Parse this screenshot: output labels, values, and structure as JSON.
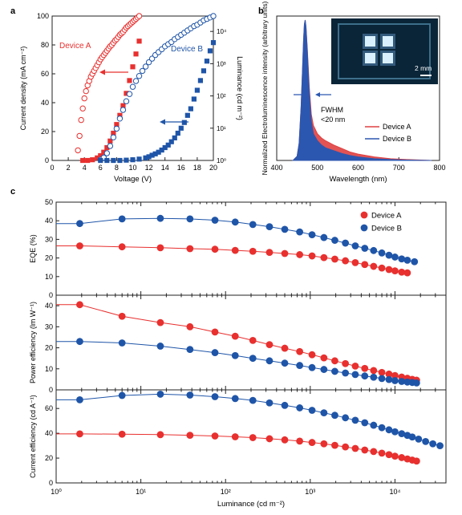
{
  "colors": {
    "device_a": "#e8302f",
    "device_b": "#1f55a8",
    "axis": "#222222",
    "spectrum_a": "#e04040",
    "spectrum_b": "#2c57b0",
    "inset_bg": "#0a2538"
  },
  "chart_data": [
    {
      "panel": "a",
      "type": "line",
      "xlabel": "Voltage (V)",
      "ylabel": "Current density (mA cm⁻²)",
      "y2label": "Luminance (cd m⁻²)",
      "xlim": [
        0,
        20
      ],
      "ylim": [
        0,
        100
      ],
      "y2lim": [
        1,
        30000
      ],
      "y2scale": "log",
      "x_ticks": [
        "0",
        "2",
        "4",
        "6",
        "8",
        "10",
        "12",
        "14",
        "16",
        "18",
        "20"
      ],
      "y_ticks": [
        "0",
        "20",
        "40",
        "60",
        "80",
        "100"
      ],
      "y2_ticks": [
        "10⁰",
        "10¹",
        "10²",
        "10³",
        "10⁴"
      ],
      "legend": [
        {
          "name": "Device A",
          "color": "device_a"
        },
        {
          "name": "Device B",
          "color": "device_b"
        }
      ],
      "series": [
        {
          "name": "Device A",
          "kind": "current",
          "axis": "left",
          "marker": "open-circle",
          "color": "device_a",
          "x": [
            3.2,
            3.4,
            3.6,
            3.8,
            4.0,
            4.2,
            4.4,
            4.6,
            4.8,
            5.0,
            5.2,
            5.4,
            5.6,
            5.8,
            6.0,
            6.2,
            6.4,
            6.6,
            6.8,
            7.0,
            7.2,
            7.4,
            7.6,
            7.8,
            8.0,
            8.2,
            8.4,
            8.6,
            8.8,
            9.0,
            9.2,
            9.4,
            9.6,
            9.8,
            10.0,
            10.2,
            10.4,
            10.6,
            10.8
          ],
          "y": [
            7,
            17,
            28,
            36,
            43,
            48,
            52,
            55,
            58,
            60,
            62,
            64,
            66,
            68,
            70,
            71.5,
            73,
            74.5,
            76,
            77.5,
            79,
            80,
            81.5,
            83,
            84,
            85.5,
            87,
            88,
            89,
            90.5,
            92,
            93,
            94,
            95,
            96,
            97,
            98,
            99,
            100
          ]
        },
        {
          "name": "Device A",
          "kind": "luminance",
          "axis": "right",
          "marker": "filled-square",
          "color": "device_a",
          "x": [
            3.8,
            4.4,
            5.0,
            5.6,
            6.0,
            6.4,
            6.8,
            7.2,
            7.6,
            8.0,
            8.4,
            8.8,
            9.2,
            9.6,
            10.0,
            10.4,
            10.8
          ],
          "y": [
            1,
            1,
            1.05,
            1.2,
            1.4,
            1.8,
            2.5,
            4,
            7,
            13,
            25,
            50,
            120,
            300,
            800,
            2000,
            5000
          ]
        },
        {
          "name": "Device B",
          "kind": "current",
          "axis": "left",
          "marker": "open-circle",
          "color": "device_b",
          "x": [
            6.0,
            6.4,
            6.8,
            7.2,
            7.6,
            8.0,
            8.4,
            8.8,
            9.2,
            9.6,
            10.0,
            10.4,
            10.8,
            11.2,
            11.6,
            12.0,
            12.4,
            12.8,
            13.2,
            13.6,
            14.0,
            14.4,
            14.8,
            15.2,
            15.6,
            16.0,
            16.4,
            16.8,
            17.2,
            17.6,
            18.0,
            18.4,
            18.8,
            19.2,
            19.6,
            20.0
          ],
          "y": [
            0.5,
            2,
            5,
            10,
            16,
            22,
            29,
            35,
            41,
            46,
            51,
            55,
            58.5,
            62,
            65,
            68,
            70.5,
            73,
            75,
            77,
            79,
            80.5,
            82,
            84,
            85.5,
            87,
            88.5,
            90,
            91.5,
            93,
            94,
            95.5,
            97,
            98,
            99,
            100
          ]
        },
        {
          "name": "Device B",
          "kind": "luminance",
          "axis": "right",
          "marker": "filled-square",
          "color": "device_b",
          "x": [
            6.0,
            6.8,
            7.6,
            8.4,
            9.2,
            10.0,
            10.8,
            11.6,
            12.0,
            12.4,
            12.8,
            13.2,
            13.6,
            14.0,
            14.4,
            14.8,
            15.2,
            15.6,
            16.0,
            16.4,
            16.8,
            17.2,
            17.6,
            18.0,
            18.4,
            18.8,
            19.2,
            19.6,
            20.0
          ],
          "y": [
            1,
            1,
            1,
            1,
            1.02,
            1.05,
            1.1,
            1.2,
            1.3,
            1.45,
            1.6,
            1.8,
            2.1,
            2.5,
            3,
            3.8,
            5,
            7,
            10,
            15,
            25,
            40,
            80,
            150,
            300,
            600,
            1200,
            2500,
            4500
          ]
        }
      ]
    },
    {
      "panel": "b",
      "type": "area",
      "xlabel": "Wavelength (nm)",
      "ylabel": "Normalized Electroluminescence intensity (arbitrary units)",
      "xlim": [
        400,
        800
      ],
      "ylim": [
        0,
        1
      ],
      "x_ticks": [
        "400",
        "500",
        "600",
        "700",
        "800"
      ],
      "annotation": "FWHM <20 nm",
      "inset_scale_label": "2 mm",
      "legend": [
        {
          "name": "Device A",
          "color": "spectrum_a"
        },
        {
          "name": "Device B",
          "color": "spectrum_b"
        }
      ],
      "series": [
        {
          "name": "Device A",
          "color": "spectrum_a",
          "x": [
            440,
            450,
            455,
            460,
            463,
            466,
            468,
            470,
            472,
            475,
            480,
            485,
            490,
            500,
            510,
            520,
            540,
            560,
            580,
            600,
            640,
            680,
            720,
            780
          ],
          "y": [
            0,
            0.03,
            0.12,
            0.38,
            0.62,
            0.86,
            0.97,
            1.0,
            0.95,
            0.8,
            0.52,
            0.33,
            0.25,
            0.19,
            0.16,
            0.14,
            0.11,
            0.085,
            0.06,
            0.045,
            0.025,
            0.012,
            0.006,
            0
          ]
        },
        {
          "name": "Device B",
          "color": "spectrum_b",
          "x": [
            440,
            450,
            455,
            460,
            463,
            466,
            468,
            470,
            472,
            475,
            480,
            485,
            490,
            500,
            510,
            520,
            540,
            560,
            580,
            600,
            640,
            680,
            720,
            780
          ],
          "y": [
            0,
            0.03,
            0.12,
            0.38,
            0.62,
            0.86,
            0.97,
            1.0,
            0.95,
            0.78,
            0.48,
            0.28,
            0.19,
            0.14,
            0.11,
            0.09,
            0.07,
            0.05,
            0.035,
            0.025,
            0.012,
            0.006,
            0.003,
            0
          ]
        }
      ]
    },
    {
      "panel": "c",
      "type": "line",
      "xlabel": "Luminance (cd m⁻²)",
      "xscale": "log",
      "xlim": [
        1,
        40000
      ],
      "x_ticks": [
        "10⁰",
        "10¹",
        "10²",
        "10³",
        "10⁴"
      ],
      "legend": [
        {
          "name": "Device A",
          "color": "device_a"
        },
        {
          "name": "Device B",
          "color": "device_b"
        }
      ],
      "subplots": [
        {
          "ylabel": "EQE (%)",
          "ylim": [
            0,
            50
          ],
          "y_ticks": [
            "0",
            "10",
            "20",
            "30",
            "40",
            "50"
          ],
          "series": [
            {
              "name": "Device A",
              "color": "device_a",
              "x": [
                1.9,
                6,
                17,
                38,
                75,
                130,
                210,
                330,
                500,
                750,
                1050,
                1450,
                1950,
                2600,
                3400,
                4400,
                5600,
                7000,
                8500,
                10000,
                12000,
                14000
              ],
              "y": [
                26.5,
                26,
                25.5,
                25,
                24.7,
                24.1,
                23.6,
                23,
                22.4,
                21.8,
                21.1,
                20.2,
                19.4,
                18.5,
                17.5,
                16.5,
                15.5,
                14.6,
                13.8,
                13.1,
                12.4,
                12
              ]
            },
            {
              "name": "Device B",
              "color": "device_b",
              "x": [
                1.9,
                6,
                17,
                38,
                75,
                130,
                210,
                330,
                500,
                750,
                1050,
                1450,
                1950,
                2600,
                3400,
                4400,
                5600,
                7000,
                8500,
                10000,
                12000,
                14000,
                17000
              ],
              "y": [
                38.5,
                41,
                41.3,
                41,
                40.3,
                39.3,
                38,
                36.8,
                35.4,
                34,
                32.5,
                31,
                29.5,
                28,
                26.5,
                25.2,
                24,
                22.7,
                21.5,
                20.5,
                19.5,
                18.8,
                18
              ]
            }
          ]
        },
        {
          "ylabel": "Power efficiency (lm W⁻¹)",
          "ylim": [
            0,
            45
          ],
          "y_ticks": [
            "0",
            "10",
            "20",
            "30",
            "40"
          ],
          "series": [
            {
              "name": "Device A",
              "color": "device_a",
              "x": [
                1.9,
                6,
                17,
                38,
                75,
                130,
                210,
                330,
                500,
                750,
                1050,
                1450,
                1950,
                2600,
                3400,
                4400,
                5600,
                7000,
                8500,
                10000,
                12000,
                14000,
                16000,
                18000
              ],
              "y": [
                40.5,
                35,
                32,
                30,
                27.5,
                25.5,
                23.5,
                21.5,
                19.8,
                18.2,
                16.7,
                15.2,
                13.8,
                12.5,
                11.3,
                10.2,
                9.2,
                8.3,
                7.5,
                6.8,
                6.1,
                5.5,
                5,
                4.6
              ]
            },
            {
              "name": "Device B",
              "color": "device_b",
              "x": [
                1.9,
                6,
                17,
                38,
                75,
                130,
                210,
                330,
                500,
                750,
                1050,
                1450,
                1950,
                2600,
                3400,
                4400,
                5600,
                7000,
                8500,
                10000,
                12000,
                14000,
                16000,
                18000
              ],
              "y": [
                23,
                22.3,
                20.8,
                19.2,
                17.7,
                16.3,
                15,
                13.8,
                12.7,
                11.6,
                10.6,
                9.7,
                8.8,
                8,
                7.3,
                6.6,
                6,
                5.4,
                4.9,
                4.4,
                4,
                3.7,
                3.5,
                3.3
              ]
            }
          ]
        },
        {
          "ylabel": "Current efficiency (cd A⁻¹)",
          "ylim": [
            0,
            75
          ],
          "y_ticks": [
            "0",
            "20",
            "40",
            "60"
          ],
          "series": [
            {
              "name": "Device A",
              "color": "device_a",
              "x": [
                1.9,
                6,
                17,
                38,
                75,
                130,
                210,
                330,
                500,
                750,
                1050,
                1450,
                1950,
                2600,
                3400,
                4400,
                5600,
                7000,
                8500,
                10000,
                12000,
                14000,
                16000,
                18000
              ],
              "y": [
                39.5,
                39.3,
                38.9,
                38.4,
                37.8,
                37.2,
                36.5,
                35.6,
                34.7,
                33.7,
                32.6,
                31.5,
                30.3,
                29,
                27.8,
                26.5,
                25.3,
                24,
                22.8,
                21.6,
                20.4,
                19.3,
                18.4,
                17.6
              ]
            },
            {
              "name": "Device B",
              "color": "device_b",
              "x": [
                1.9,
                6,
                17,
                38,
                75,
                130,
                210,
                330,
                500,
                750,
                1050,
                1450,
                1950,
                2600,
                3400,
                4400,
                5600,
                7000,
                8500,
                10000,
                12000,
                14000,
                16000,
                19000,
                23000,
                28000,
                34000
              ],
              "y": [
                67,
                70.5,
                71.5,
                70.8,
                69.5,
                68,
                66.5,
                64.5,
                62.5,
                60.5,
                58.5,
                56.5,
                54.5,
                52.5,
                50.5,
                48.5,
                46.5,
                44.5,
                42.8,
                41.2,
                39.7,
                38.3,
                37,
                35.3,
                33.4,
                31.5,
                30
              ]
            }
          ]
        }
      ]
    }
  ],
  "panel_labels": {
    "a": "a",
    "b": "b",
    "c": "c"
  }
}
